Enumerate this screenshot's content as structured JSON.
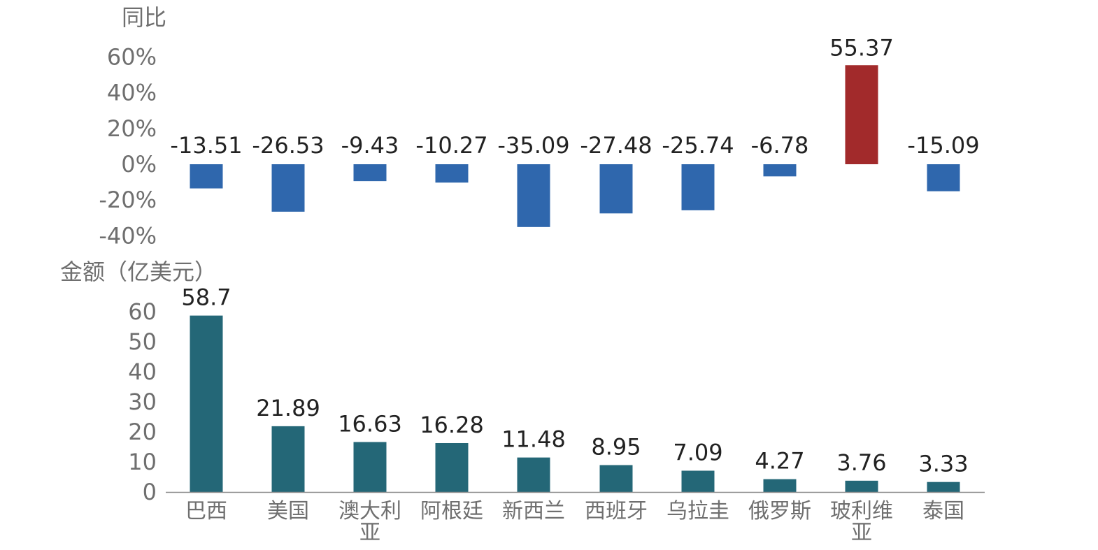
{
  "chart_data": [
    {
      "type": "bar",
      "ylabel": "同比",
      "categories": [
        "巴西",
        "美国",
        "澳大利亚",
        "阿根廷",
        "新西兰",
        "西班牙",
        "乌拉圭",
        "俄罗斯",
        "玻利维亚",
        "泰国"
      ],
      "values": [
        -13.51,
        -26.53,
        -9.43,
        -10.27,
        -35.09,
        -27.48,
        -25.74,
        -6.78,
        55.37,
        -15.09
      ],
      "data_labels": [
        "-13.51",
        "-26.53",
        "-9.43",
        "-10.27",
        "-35.09",
        "-27.48",
        "-25.74",
        "-6.78",
        "55.37",
        "-15.09"
      ],
      "ylim": [
        -40,
        60
      ],
      "yticks": [
        -40,
        -20,
        0,
        20,
        40,
        60
      ],
      "ytick_labels": [
        "-40%",
        "-20%",
        "0%",
        "20%",
        "40%",
        "60%"
      ],
      "grid": false,
      "colors": {
        "negative": "#2f67ad",
        "positive": "#a22a2b"
      }
    },
    {
      "type": "bar",
      "ylabel": "金额（亿美元）",
      "categories": [
        "巴西",
        "美国",
        "澳大利亚",
        "阿根廷",
        "新西兰",
        "西班牙",
        "乌拉圭",
        "俄罗斯",
        "玻利维亚",
        "泰国"
      ],
      "category_lines": [
        [
          "巴西"
        ],
        [
          "美国"
        ],
        [
          "澳大利",
          "亚"
        ],
        [
          "阿根廷"
        ],
        [
          "新西兰"
        ],
        [
          "西班牙"
        ],
        [
          "乌拉圭"
        ],
        [
          "俄罗斯"
        ],
        [
          "玻利维",
          "亚"
        ],
        [
          "泰国"
        ]
      ],
      "values": [
        58.7,
        21.89,
        16.63,
        16.28,
        11.48,
        8.95,
        7.09,
        4.27,
        3.76,
        3.33
      ],
      "data_labels": [
        "58.7",
        "21.89",
        "16.63",
        "16.28",
        "11.48",
        "8.95",
        "7.09",
        "4.27",
        "3.76",
        "3.33"
      ],
      "ylim": [
        0,
        60
      ],
      "yticks": [
        0,
        10,
        20,
        30,
        40,
        50,
        60
      ],
      "ytick_labels": [
        "0",
        "10",
        "20",
        "30",
        "40",
        "50",
        "60"
      ],
      "grid": false,
      "colors": {
        "bar": "#246777"
      }
    }
  ]
}
